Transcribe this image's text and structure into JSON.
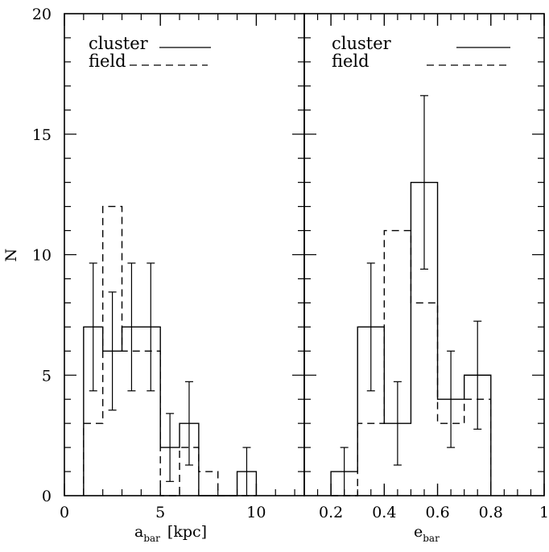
{
  "chart_data": [
    {
      "type": "bar",
      "panel": "left",
      "xlabel_main": "a",
      "xlabel_sub": "bar",
      "xlabel_unit": "[kpc]",
      "ylabel": "N",
      "xlim": [
        0,
        12.5
      ],
      "ylim": [
        0,
        20
      ],
      "xticks": [
        0,
        5,
        10
      ],
      "yticks": [
        0,
        5,
        10,
        15,
        20
      ],
      "legend": {
        "placement": "top-left",
        "entries": [
          {
            "name": "cluster",
            "style": "solid"
          },
          {
            "name": "field",
            "style": "dashed"
          }
        ]
      },
      "bin_edges": [
        1,
        2,
        3,
        4,
        5,
        6,
        7,
        8,
        9,
        10
      ],
      "series": [
        {
          "name": "cluster",
          "style": "solid",
          "values": [
            7,
            6,
            7,
            7,
            2,
            3,
            0,
            0,
            1
          ],
          "errors": [
            2.65,
            2.45,
            2.65,
            2.65,
            1.41,
            1.73,
            0,
            0,
            1.0
          ]
        },
        {
          "name": "field",
          "style": "dashed",
          "values": [
            3,
            12,
            6,
            6,
            0,
            2,
            1,
            0,
            0
          ]
        }
      ]
    },
    {
      "type": "bar",
      "panel": "right",
      "xlabel_main": "e",
      "xlabel_sub": "bar",
      "xlabel_unit": "",
      "xlim": [
        0.1,
        1.0
      ],
      "ylim": [
        0,
        20
      ],
      "xticks": [
        0.2,
        0.4,
        0.6,
        0.8,
        1
      ],
      "xtick_labels": [
        "0.2",
        "0.4",
        "0.6",
        "0.8",
        "1"
      ],
      "yticks": [
        0,
        5,
        10,
        15,
        20
      ],
      "legend": {
        "placement": "top-right",
        "entries": [
          {
            "name": "cluster",
            "style": "solid"
          },
          {
            "name": "field",
            "style": "dashed"
          }
        ]
      },
      "bin_edges": [
        0.2,
        0.3,
        0.4,
        0.5,
        0.6,
        0.7,
        0.8
      ],
      "series": [
        {
          "name": "cluster",
          "style": "solid",
          "values": [
            1,
            7,
            3,
            13,
            4,
            5
          ],
          "errors": [
            1.0,
            2.65,
            1.73,
            3.6,
            2.0,
            2.24
          ]
        },
        {
          "name": "field",
          "style": "dashed",
          "values": [
            0,
            3,
            11,
            8,
            3,
            4
          ]
        }
      ]
    }
  ]
}
